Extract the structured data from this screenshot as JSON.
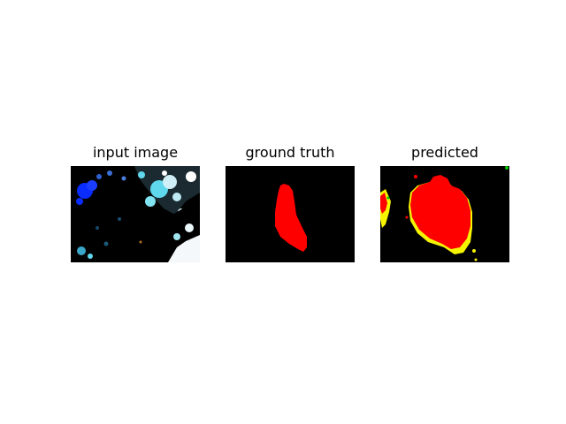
{
  "panels": [
    {
      "title": "input image"
    },
    {
      "title": "ground truth"
    },
    {
      "title": "predicted"
    }
  ],
  "colors": {
    "background": "#000000",
    "mask_red": "#ff0000",
    "mask_yellow": "#f5f500",
    "mask_green": "#00c800",
    "foliage_cyan": "#5fd8ee",
    "foliage_blue": "#0a2cff"
  }
}
